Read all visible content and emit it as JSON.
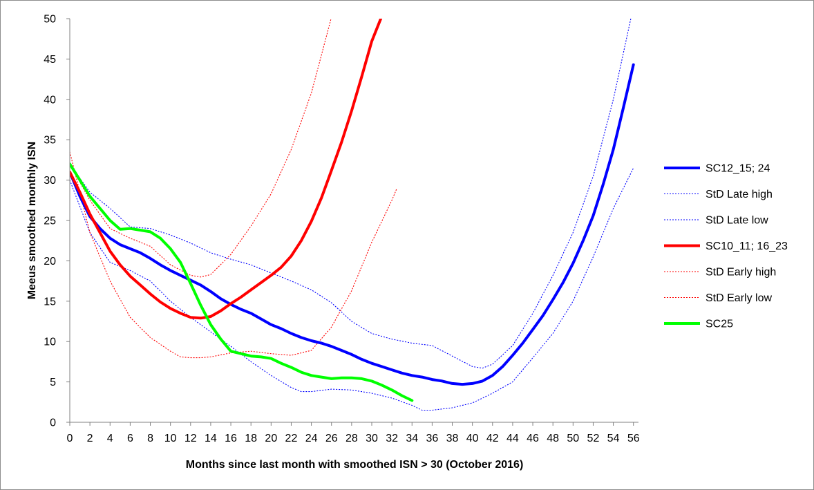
{
  "chart_data": {
    "type": "line",
    "xlabel": "Months since last month with smoothed ISN > 30 (October 2016)",
    "ylabel": "Meeus smoothed monthly ISN",
    "xlim": [
      0,
      56.5
    ],
    "ylim": [
      0,
      50
    ],
    "x_ticks": [
      0,
      2,
      4,
      6,
      8,
      10,
      12,
      14,
      16,
      18,
      20,
      22,
      24,
      26,
      28,
      30,
      32,
      34,
      36,
      38,
      40,
      42,
      44,
      46,
      48,
      50,
      52,
      54,
      56
    ],
    "y_ticks": [
      0,
      5,
      10,
      15,
      20,
      25,
      30,
      35,
      40,
      45,
      50
    ],
    "grid": false,
    "legend_position": "right",
    "series": [
      {
        "name": "SC12_15; 24",
        "color": "#0000ff",
        "style": "solid-thick",
        "x": [
          0,
          1,
          2,
          3,
          4,
          5,
          6,
          7,
          8,
          9,
          10,
          11,
          12,
          13,
          14,
          15,
          16,
          17,
          18,
          19,
          20,
          21,
          22,
          23,
          24,
          25,
          26,
          27,
          28,
          29,
          30,
          31,
          32,
          33,
          34,
          35,
          36,
          37,
          38,
          39,
          40,
          41,
          42,
          43,
          44,
          45,
          46,
          47,
          48,
          49,
          50,
          51,
          52,
          53,
          54,
          55,
          56
        ],
        "y": [
          31,
          28,
          25.5,
          24,
          22.8,
          22,
          21.5,
          21,
          20.3,
          19.5,
          18.8,
          18.2,
          17.6,
          17,
          16.2,
          15.3,
          14.6,
          14,
          13.5,
          12.8,
          12.1,
          11.6,
          11,
          10.5,
          10.1,
          9.8,
          9.4,
          8.9,
          8.4,
          7.8,
          7.3,
          6.9,
          6.5,
          6.1,
          5.8,
          5.6,
          5.3,
          5.1,
          4.8,
          4.7,
          4.8,
          5.1,
          5.8,
          6.9,
          8.3,
          9.8,
          11.5,
          13.2,
          15.2,
          17.3,
          19.7,
          22.5,
          25.6,
          29.5,
          33.8,
          39,
          44.3
        ]
      },
      {
        "name": "StD Late high",
        "color": "#0000ff",
        "style": "dotted",
        "x": [
          0,
          2,
          4,
          6,
          8,
          10,
          12,
          14,
          16,
          18,
          20,
          22,
          24,
          26,
          28,
          30,
          32,
          34,
          36,
          38,
          40,
          41,
          42,
          44,
          46,
          48,
          50,
          52,
          54,
          56
        ],
        "y": [
          32,
          28.5,
          26.5,
          24.2,
          24,
          23.2,
          22.2,
          21,
          20.2,
          19.5,
          18.5,
          17.5,
          16.4,
          14.8,
          12.5,
          11,
          10.3,
          9.8,
          9.5,
          8.2,
          6.9,
          6.7,
          7.2,
          9.5,
          13.5,
          18.2,
          23.5,
          30.5,
          40,
          51.5
        ]
      },
      {
        "name": "StD Late low",
        "color": "#0000ff",
        "style": "dotted",
        "x": [
          0,
          2,
          4,
          6,
          8,
          10,
          12,
          14,
          16,
          18,
          20,
          22,
          23,
          24,
          26,
          28,
          30,
          32,
          34,
          35,
          36,
          38,
          40,
          42,
          44,
          46,
          48,
          50,
          52,
          54,
          56
        ],
        "y": [
          30,
          23.5,
          19.8,
          18.8,
          17.5,
          15,
          13,
          11.2,
          9.4,
          7.5,
          5.8,
          4.3,
          3.8,
          3.8,
          4.1,
          4,
          3.6,
          3,
          2.1,
          1.5,
          1.5,
          1.8,
          2.4,
          3.6,
          5,
          8,
          11,
          15,
          20.5,
          26.5,
          31.5
        ]
      },
      {
        "name": "SC10_11; 16_23",
        "color": "#ff0000",
        "style": "solid-thick",
        "x": [
          0,
          1,
          2,
          3,
          4,
          5,
          6,
          7,
          8,
          9,
          10,
          11,
          12,
          13,
          14,
          15,
          16,
          17,
          18,
          19,
          20,
          21,
          22,
          23,
          24,
          25,
          26,
          27,
          28,
          29,
          30,
          30.9
        ],
        "y": [
          31,
          28.5,
          25.8,
          23.5,
          21.2,
          19.5,
          18.1,
          17,
          15.9,
          14.9,
          14.1,
          13.5,
          13,
          12.9,
          13.1,
          13.8,
          14.7,
          15.5,
          16.4,
          17.3,
          18.2,
          19.2,
          20.6,
          22.5,
          24.9,
          27.8,
          31.2,
          34.7,
          38.6,
          42.8,
          47.2,
          50
        ]
      },
      {
        "name": "StD Early high",
        "color": "#ff0000",
        "style": "dotted",
        "x": [
          0,
          2,
          4,
          6,
          8,
          10,
          12,
          13,
          14,
          16,
          18,
          20,
          22,
          24,
          25,
          26
        ],
        "y": [
          32,
          27.5,
          24,
          22.8,
          21.8,
          19.5,
          18.2,
          18,
          18.3,
          20.8,
          24.3,
          28.3,
          33.8,
          40.8,
          45.5,
          50.2
        ]
      },
      {
        "name": "StD Early low",
        "color": "#ff0000",
        "style": "dotted",
        "x": [
          0,
          2,
          4,
          6,
          8,
          10,
          11,
          12,
          13,
          14,
          16,
          18,
          20,
          22,
          24,
          26,
          28,
          30,
          32,
          32.5
        ],
        "y": [
          33.5,
          23.5,
          17.5,
          13,
          10.5,
          8.8,
          8.1,
          8,
          8,
          8.1,
          8.6,
          8.8,
          8.5,
          8.3,
          8.9,
          11.8,
          16.3,
          22.3,
          27.5,
          29
        ]
      },
      {
        "name": "SC25",
        "color": "#00ff00",
        "style": "solid-thick",
        "x": [
          0,
          1,
          2,
          3,
          4,
          5,
          6,
          7,
          8,
          9,
          10,
          11,
          12,
          13,
          14,
          15,
          16,
          17,
          18,
          19,
          20,
          21,
          22,
          23,
          24,
          25,
          26,
          27,
          28,
          29,
          30,
          31,
          32,
          33,
          34
        ],
        "y": [
          32,
          30,
          28,
          26.5,
          25,
          23.9,
          24,
          23.8,
          23.6,
          22.8,
          21.5,
          19.8,
          17.2,
          14.5,
          12.1,
          10.3,
          8.8,
          8.5,
          8.2,
          8.1,
          7.9,
          7.3,
          6.8,
          6.2,
          5.8,
          5.6,
          5.4,
          5.5,
          5.5,
          5.4,
          5.1,
          4.6,
          4,
          3.3,
          2.7
        ]
      }
    ]
  }
}
